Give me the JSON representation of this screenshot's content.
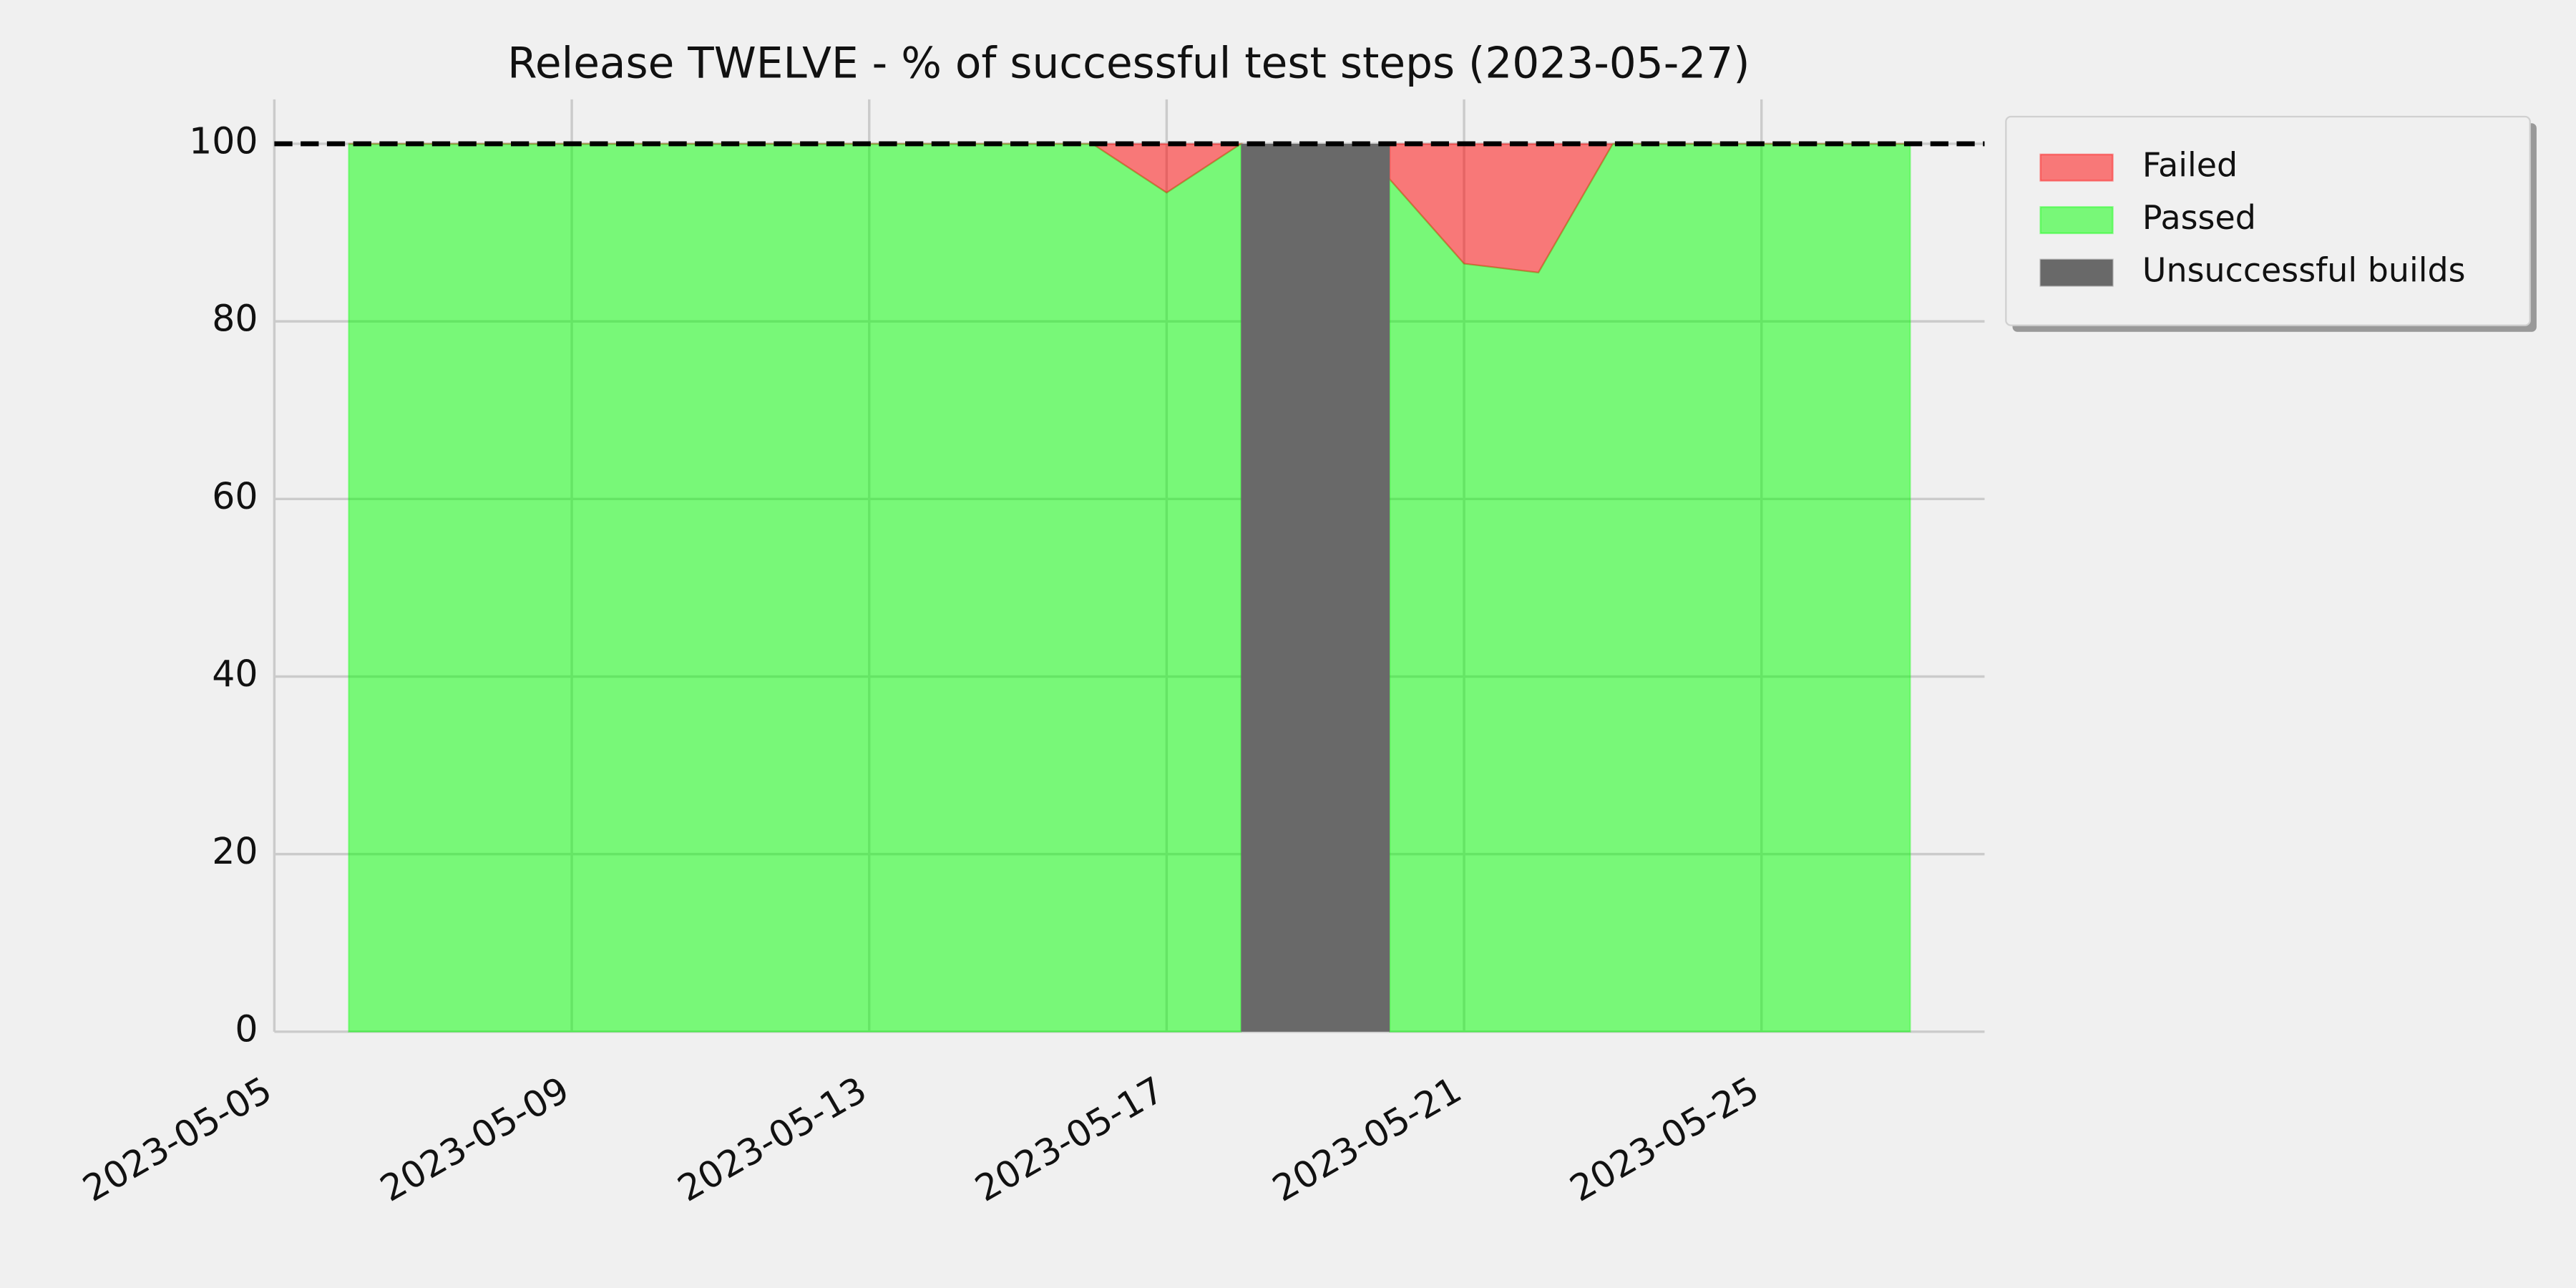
{
  "chart_data": {
    "type": "stacked_area",
    "title": "Release TWELVE - % of successful test steps (2023-05-27)",
    "x": [
      "2023-05-06",
      "2023-05-07",
      "2023-05-08",
      "2023-05-09",
      "2023-05-10",
      "2023-05-11",
      "2023-05-12",
      "2023-05-13",
      "2023-05-14",
      "2023-05-15",
      "2023-05-16",
      "2023-05-17",
      "2023-05-18",
      "2023-05-19",
      "2023-05-20",
      "2023-05-21",
      "2023-05-22",
      "2023-05-23",
      "2023-05-24",
      "2023-05-25",
      "2023-05-26",
      "2023-05-27"
    ],
    "series": [
      {
        "name": "Failed",
        "color": "#ff0000",
        "opacity": 0.5,
        "values": [
          0,
          0,
          0,
          0,
          0,
          0,
          0,
          0,
          0,
          0,
          0,
          5.5,
          0,
          null,
          4,
          13.5,
          14.5,
          0,
          0,
          0,
          0,
          0
        ]
      },
      {
        "name": "Passed",
        "color": "#00ff00",
        "opacity": 0.5,
        "values": [
          100,
          100,
          100,
          100,
          100,
          100,
          100,
          100,
          100,
          100,
          100,
          94.5,
          100,
          null,
          96,
          86.5,
          85.5,
          100,
          100,
          100,
          100,
          100
        ]
      },
      {
        "name": "Unsuccessful builds",
        "color": "#696969",
        "spans": [
          [
            "2023-05-18",
            "2023-05-20"
          ]
        ]
      }
    ],
    "reference_line": 100,
    "xlim": [
      "2023-05-05",
      "2023-05-28"
    ],
    "xticks": [
      "2023-05-05",
      "2023-05-09",
      "2023-05-13",
      "2023-05-17",
      "2023-05-21",
      "2023-05-25"
    ],
    "ylim": [
      0,
      105
    ],
    "yticks": [
      0,
      20,
      40,
      60,
      80,
      100
    ],
    "grid": true,
    "legend": "outside-upper-right"
  }
}
